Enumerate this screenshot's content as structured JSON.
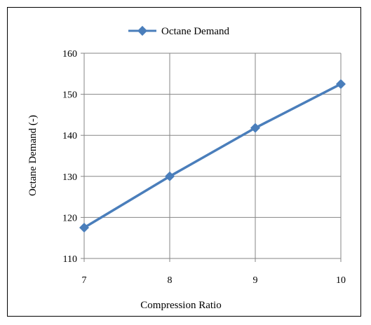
{
  "chart_data": {
    "type": "line",
    "title": "",
    "xlabel": "Compression Ratio",
    "ylabel": "Octane Demand (-)",
    "x": [
      7,
      8,
      9,
      10
    ],
    "xlim": [
      7,
      10
    ],
    "ylim": [
      110,
      160
    ],
    "xticks": [
      "7",
      "8",
      "9",
      "10"
    ],
    "yticks": [
      "110",
      "120",
      "130",
      "140",
      "150",
      "160"
    ],
    "grid": true,
    "legend_position": "top-center",
    "series": [
      {
        "name": "Octane Demand",
        "values": [
          117.5,
          130,
          141.8,
          152.5
        ],
        "color": "#4A7EBB",
        "marker": "diamond"
      }
    ]
  }
}
